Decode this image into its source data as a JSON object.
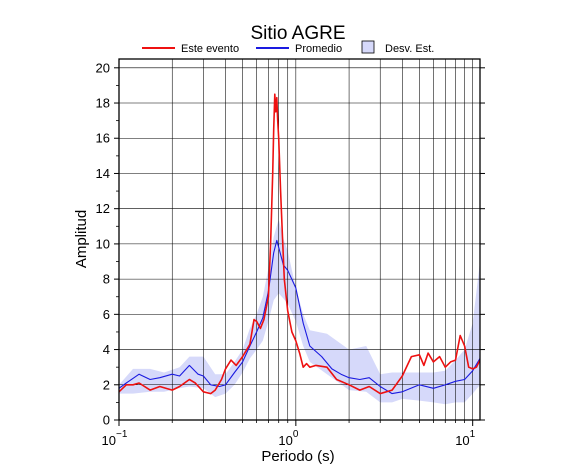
{
  "chart_data": {
    "type": "line",
    "title": "Sitio AGRE",
    "xlabel": "Periodo (s)",
    "ylabel": "Amplitud",
    "x_scale": "log",
    "xlim": [
      0.1,
      11
    ],
    "ylim": [
      0,
      20.5
    ],
    "grid": true,
    "legend_position": "top",
    "x_ticks": [
      {
        "value": 0.1,
        "base": "10",
        "exp": "−1"
      },
      {
        "value": 1,
        "base": "10",
        "exp": "0"
      },
      {
        "value": 10,
        "base": "10",
        "exp": "1"
      }
    ],
    "y_ticks": [
      0,
      2,
      4,
      6,
      8,
      10,
      12,
      14,
      16,
      18,
      20
    ],
    "legend": [
      {
        "label": "Este evento",
        "kind": "line",
        "color": "#ee1111"
      },
      {
        "label": "Promedio",
        "kind": "line",
        "color": "#1a1ae0"
      },
      {
        "label": "Desv. Est.",
        "kind": "patch",
        "color": "#d6d9fa"
      }
    ],
    "band": {
      "name": "Desv. Est.",
      "color": "#d6d9fa",
      "x": [
        0.1,
        0.12,
        0.15,
        0.18,
        0.22,
        0.25,
        0.3,
        0.35,
        0.4,
        0.45,
        0.5,
        0.55,
        0.6,
        0.65,
        0.7,
        0.75,
        0.8,
        0.85,
        0.9,
        1.0,
        1.1,
        1.2,
        1.5,
        2.0,
        2.5,
        3.0,
        3.5,
        4.0,
        5.0,
        6.0,
        7.0,
        8.0,
        9.0,
        10.0,
        11.0
      ],
      "upper": [
        2.0,
        2.9,
        2.9,
        2.7,
        3.0,
        3.6,
        3.6,
        2.6,
        2.6,
        3.3,
        4.0,
        5.2,
        6.0,
        7.0,
        8.6,
        10.4,
        11.4,
        10.3,
        9.6,
        7.5,
        6.0,
        5.1,
        4.9,
        4.0,
        4.2,
        2.6,
        2.7,
        2.7,
        2.7,
        2.7,
        2.8,
        3.4,
        4.0,
        5.5,
        9.0
      ],
      "lower": [
        1.5,
        1.5,
        1.6,
        1.6,
        1.8,
        1.9,
        1.8,
        1.3,
        1.5,
        2.0,
        2.7,
        3.5,
        4.0,
        4.5,
        5.6,
        6.8,
        7.2,
        6.9,
        6.6,
        5.6,
        4.2,
        3.3,
        2.6,
        1.7,
        1.6,
        1.0,
        1.0,
        1.2,
        1.1,
        1.0,
        0.9,
        1.0,
        1.0,
        1.5,
        2.0
      ]
    },
    "series": [
      {
        "name": "Promedio",
        "color": "#1a1ae0",
        "x": [
          0.1,
          0.11,
          0.13,
          0.15,
          0.17,
          0.2,
          0.22,
          0.25,
          0.28,
          0.3,
          0.33,
          0.37,
          0.4,
          0.45,
          0.5,
          0.55,
          0.6,
          0.65,
          0.7,
          0.75,
          0.78,
          0.8,
          0.85,
          0.9,
          1.0,
          1.1,
          1.2,
          1.4,
          1.6,
          1.8,
          2.0,
          2.3,
          2.6,
          3.0,
          3.5,
          4.0,
          5.0,
          6.0,
          7.0,
          8.0,
          9.0,
          10.0,
          11.0
        ],
        "y": [
          1.8,
          2.1,
          2.6,
          2.3,
          2.4,
          2.6,
          2.5,
          3.1,
          2.6,
          2.5,
          2.0,
          1.9,
          2.0,
          2.7,
          3.3,
          4.2,
          5.0,
          5.8,
          7.3,
          9.5,
          10.2,
          9.8,
          8.8,
          8.5,
          7.5,
          5.5,
          4.2,
          3.6,
          2.9,
          2.6,
          2.4,
          2.3,
          2.4,
          1.9,
          1.5,
          1.6,
          2.0,
          1.8,
          2.0,
          2.2,
          2.3,
          2.8,
          3.5
        ]
      },
      {
        "name": "Este evento",
        "color": "#ee1111",
        "x": [
          0.1,
          0.11,
          0.12,
          0.13,
          0.15,
          0.17,
          0.2,
          0.22,
          0.25,
          0.27,
          0.3,
          0.33,
          0.35,
          0.38,
          0.4,
          0.43,
          0.46,
          0.5,
          0.55,
          0.58,
          0.6,
          0.63,
          0.66,
          0.7,
          0.72,
          0.74,
          0.75,
          0.76,
          0.77,
          0.78,
          0.79,
          0.8,
          0.82,
          0.84,
          0.86,
          0.9,
          0.95,
          1.0,
          1.05,
          1.1,
          1.15,
          1.2,
          1.3,
          1.5,
          1.7,
          2.0,
          2.3,
          2.6,
          3.0,
          3.5,
          4.0,
          4.5,
          5.0,
          5.3,
          5.6,
          6.0,
          6.5,
          7.0,
          7.5,
          8.0,
          8.5,
          9.0,
          9.5,
          10.0,
          10.5,
          11.0
        ],
        "y": [
          1.6,
          2.0,
          2.0,
          2.1,
          1.7,
          1.9,
          1.7,
          1.9,
          2.3,
          2.1,
          1.6,
          1.5,
          1.7,
          2.3,
          2.9,
          3.4,
          3.1,
          3.6,
          4.3,
          5.7,
          5.6,
          5.2,
          5.7,
          7.0,
          10.0,
          14.0,
          16.5,
          18.5,
          17.5,
          18.3,
          17.0,
          16.0,
          13.0,
          10.5,
          8.0,
          6.2,
          5.0,
          4.5,
          3.8,
          3.0,
          3.2,
          3.0,
          3.1,
          3.0,
          2.3,
          2.0,
          1.7,
          1.9,
          1.5,
          1.7,
          2.5,
          3.6,
          3.7,
          3.1,
          3.8,
          3.3,
          3.6,
          3.0,
          3.3,
          3.4,
          4.8,
          4.2,
          3.0,
          2.9,
          3.0,
          3.4
        ]
      }
    ]
  }
}
